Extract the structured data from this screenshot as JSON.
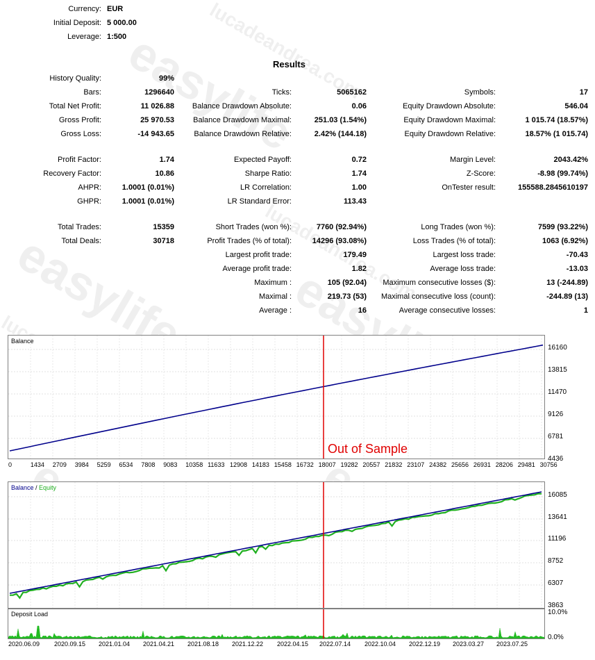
{
  "settings": [
    {
      "label": "Currency:",
      "value": "EUR"
    },
    {
      "label": "Initial Deposit:",
      "value": "5 000.00"
    },
    {
      "label": "Leverage:",
      "value": "1:500"
    }
  ],
  "results_title": "Results",
  "rows": [
    [
      [
        "History Quality:",
        "99%"
      ],
      null,
      null
    ],
    [
      [
        "Bars:",
        "1296640"
      ],
      [
        "Ticks:",
        "5065162"
      ],
      [
        "Symbols:",
        "17"
      ]
    ],
    [
      [
        "Total Net Profit:",
        "11 026.88"
      ],
      [
        "Balance Drawdown Absolute:",
        "0.06"
      ],
      [
        "Equity Drawdown Absolute:",
        "546.04"
      ]
    ],
    [
      [
        "Gross Profit:",
        "25 970.53"
      ],
      [
        "Balance Drawdown Maximal:",
        "251.03 (1.54%)"
      ],
      [
        "Equity Drawdown Maximal:",
        "1 015.74 (18.57%)"
      ]
    ],
    [
      [
        "Gross Loss:",
        "-14 943.65"
      ],
      [
        "Balance Drawdown Relative:",
        "2.42% (144.18)"
      ],
      [
        "Equity Drawdown Relative:",
        "18.57% (1 015.74)"
      ]
    ],
    [
      [
        "Profit Factor:",
        "1.74"
      ],
      [
        "Expected Payoff:",
        "0.72"
      ],
      [
        "Margin Level:",
        "2043.42%"
      ]
    ],
    [
      [
        "Recovery Factor:",
        "10.86"
      ],
      [
        "Sharpe Ratio:",
        "1.74"
      ],
      [
        "Z-Score:",
        "-8.98 (99.74%)"
      ]
    ],
    [
      [
        "AHPR:",
        "1.0001 (0.01%)"
      ],
      [
        "LR Correlation:",
        "1.00"
      ],
      [
        "OnTester result:",
        "155588.2845610197"
      ]
    ],
    [
      [
        "GHPR:",
        "1.0001 (0.01%)"
      ],
      [
        "LR Standard Error:",
        "113.43"
      ],
      null
    ],
    [
      [
        "Total Trades:",
        "15359"
      ],
      [
        "Short Trades (won %):",
        "7760 (92.94%)"
      ],
      [
        "Long Trades (won %):",
        "7599 (93.22%)"
      ]
    ],
    [
      [
        "Total Deals:",
        "30718"
      ],
      [
        "Profit Trades (% of total):",
        "14296 (93.08%)"
      ],
      [
        "Loss Trades (% of total):",
        "1063 (6.92%)"
      ]
    ],
    [
      null,
      [
        "Largest profit trade:",
        "179.49"
      ],
      [
        "Largest loss trade:",
        "-70.43"
      ]
    ],
    [
      null,
      [
        "Average profit trade:",
        "1.82"
      ],
      [
        "Average loss trade:",
        "-13.03"
      ]
    ],
    [
      null,
      [
        "Maximum :",
        "105 (92.04)"
      ],
      [
        "Maximum consecutive losses ($):",
        "13 (-244.89)"
      ]
    ],
    [
      null,
      [
        "Maximal :",
        "219.73 (53)"
      ],
      [
        "Maximal consecutive loss (count):",
        "-244.89 (13)"
      ]
    ],
    [
      null,
      [
        "Average :",
        "16"
      ],
      [
        "Average consecutive losses:",
        "1"
      ]
    ]
  ],
  "chart1": {
    "title": "Balance",
    "annotation": "Out of Sample",
    "y_ticks": [
      "16160",
      "13815",
      "11470",
      "9126",
      "6781",
      "4436"
    ],
    "x_ticks": [
      "0",
      "1434",
      "2709",
      "3984",
      "5259",
      "6534",
      "7808",
      "9083",
      "10358",
      "11633",
      "12908",
      "14183",
      "15458",
      "16732",
      "18007",
      "19282",
      "20557",
      "21832",
      "23107",
      "24382",
      "25656",
      "26931",
      "28206",
      "29481",
      "30756"
    ]
  },
  "chart2": {
    "title_balance": "Balance",
    "title_sep": " / ",
    "title_equity": "Equity",
    "y_ticks": [
      "16085",
      "13641",
      "11196",
      "8752",
      "6307",
      "3863"
    ]
  },
  "chart3": {
    "title": "Deposit Load",
    "y_ticks": [
      "10.0%",
      "0.0%"
    ],
    "x_ticks": [
      "2020.06.09",
      "2020.09.15",
      "2021.01.04",
      "2021.04.21",
      "2021.08.18",
      "2021.12.22",
      "2022.04.15",
      "2022.07.14",
      "2022.10.04",
      "2022.12.19",
      "2023.03.27",
      "2023.07.25"
    ]
  },
  "watermark": "lucadeandrea.com",
  "colors": {
    "balance": "#00008b",
    "equity": "#1faf1f",
    "marker": "#e00000",
    "load": "#22bb22"
  },
  "chart_data": [
    {
      "type": "line",
      "title": "Balance",
      "x": [
        0,
        30756
      ],
      "series": [
        {
          "name": "Balance",
          "values": [
            4950,
            16180
          ]
        }
      ],
      "ylim": [
        4436,
        16160
      ],
      "annotation": "Out of Sample"
    },
    {
      "type": "line",
      "title": "Balance / Equity",
      "series": [
        {
          "name": "Balance",
          "values": [
            5000,
            16085
          ]
        },
        {
          "name": "Equity",
          "values": [
            4800,
            15900
          ]
        }
      ],
      "ylim": [
        3863,
        16085
      ]
    },
    {
      "type": "area",
      "title": "Deposit Load",
      "ylim": [
        0,
        10
      ]
    }
  ]
}
